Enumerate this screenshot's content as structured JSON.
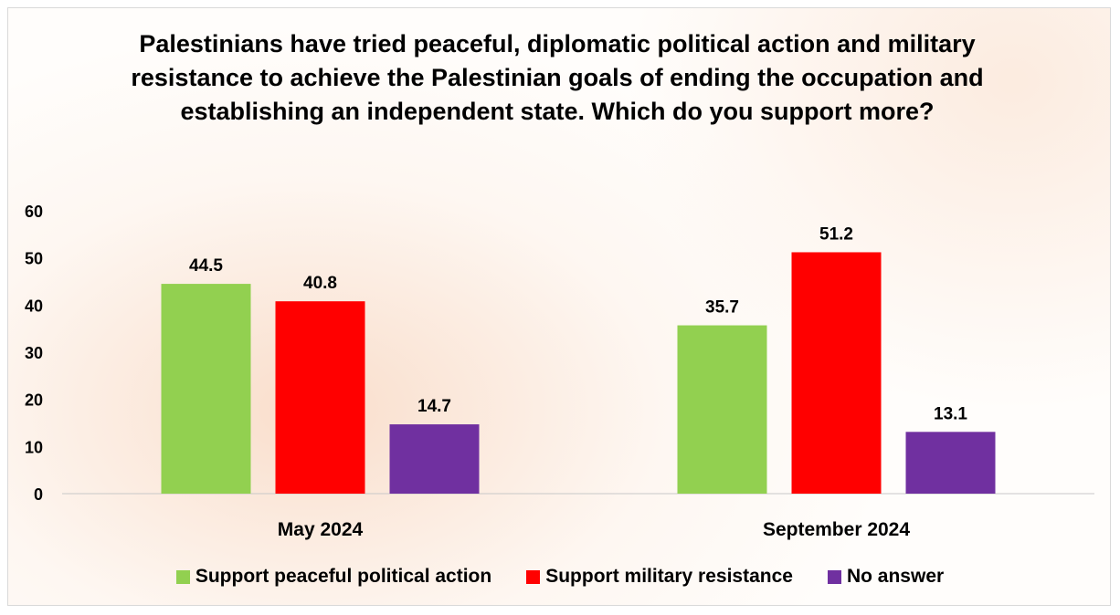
{
  "chart_data": {
    "type": "bar",
    "title": "Palestinians have tried peaceful, diplomatic political action and military resistance to achieve the Palestinian goals of ending the occupation and establishing an independent state. Which do you support more?",
    "categories": [
      "May 2024",
      "September 2024"
    ],
    "series": [
      {
        "name": "Support peaceful political action",
        "color": "#92d050",
        "values": [
          44.5,
          35.7
        ]
      },
      {
        "name": "Support military resistance",
        "color": "#ff0000",
        "values": [
          40.8,
          51.2
        ]
      },
      {
        "name": "No answer",
        "color": "#7030a0",
        "values": [
          14.7,
          13.1
        ]
      }
    ],
    "ylim": [
      0,
      60
    ],
    "yticks": [
      0,
      10,
      20,
      30,
      40,
      50,
      60
    ],
    "grid": false,
    "legend": "bottom"
  }
}
